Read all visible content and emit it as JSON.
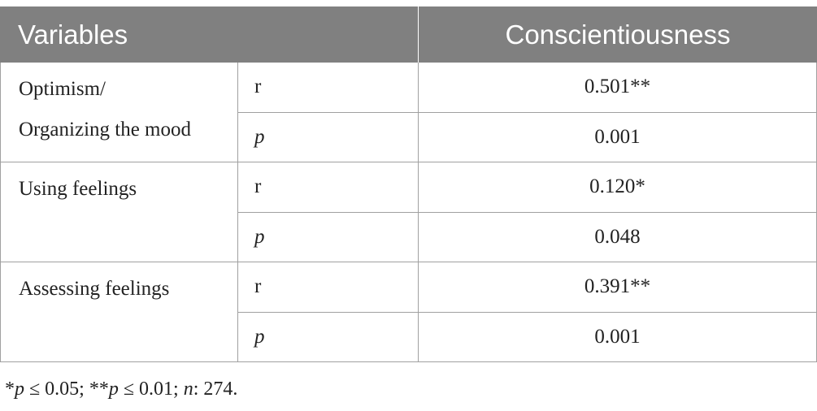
{
  "table": {
    "header": [
      "Variables",
      "Conscientiousness"
    ],
    "groups": [
      {
        "label": [
          "Optimism/",
          "Organizing the mood"
        ],
        "rows": [
          [
            "r",
            "0.501**"
          ],
          [
            "p",
            "0.001"
          ]
        ]
      },
      {
        "label": [
          "Using feelings"
        ],
        "rows": [
          [
            "r",
            "0.120*"
          ],
          [
            "p",
            "0.048"
          ]
        ]
      },
      {
        "label": [
          "Assessing feelings"
        ],
        "rows": [
          [
            "r",
            "0.391**"
          ],
          [
            "p",
            "0.001"
          ]
        ]
      }
    ]
  },
  "footnote": [
    "*",
    "p",
    " ≤ 0.05; **",
    "p",
    " ≤ 0.01; ",
    "n",
    ": 274."
  ]
}
